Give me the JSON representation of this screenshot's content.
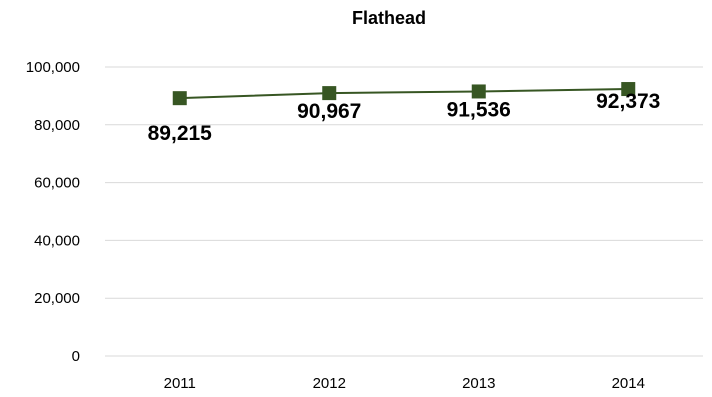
{
  "chart_data": {
    "type": "line",
    "title": "Flathead",
    "xlabel": "",
    "ylabel": "",
    "categories": [
      "2011",
      "2012",
      "2013",
      "2014"
    ],
    "series": [
      {
        "values": [
          89215,
          90967,
          91536,
          92373
        ]
      }
    ],
    "data_labels": [
      "89,215",
      "90,967",
      "91,536",
      "92,373"
    ],
    "y_ticks": [
      "0",
      "20,000",
      "40,000",
      "60,000",
      "80,000",
      "100,000"
    ],
    "ylim": [
      0,
      100000
    ],
    "grid": true,
    "legend": "none",
    "line_color": "#375623",
    "marker": "square"
  }
}
